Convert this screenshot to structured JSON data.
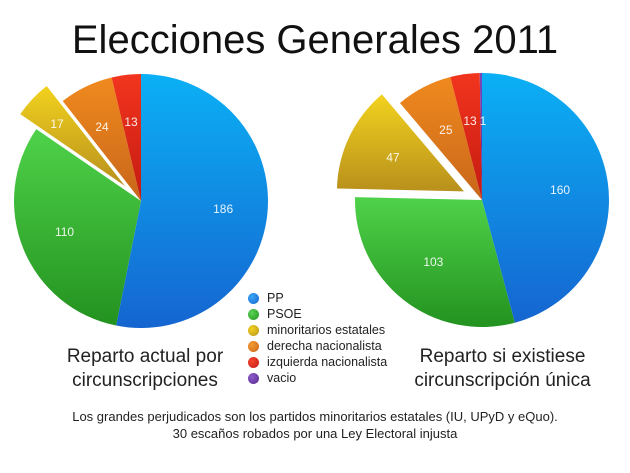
{
  "title": "Elecciones Generales 2011",
  "legend": [
    {
      "label": "PP",
      "color": "#1a86e8"
    },
    {
      "label": "PSOE",
      "color": "#3cb83a"
    },
    {
      "label": "minoritarios estatales",
      "color": "#d9b51c"
    },
    {
      "label": "derecha nacionalista",
      "color": "#e27a1a"
    },
    {
      "label": "izquierda nacionalista",
      "color": "#e0271c"
    },
    {
      "label": "vacio",
      "color": "#6a3aa0"
    }
  ],
  "captions": {
    "left": [
      "Reparto actual por",
      "circunscripciones"
    ],
    "right": [
      "Reparto si existiese",
      "circunscripción única"
    ]
  },
  "footer": [
    "Los grandes perjudicados son los partidos minoritarios estatales (IU, UPyD y eQuo).",
    "30 escaños robados por una Ley Electoral injusta"
  ],
  "chart_data": [
    {
      "type": "pie",
      "title": "Reparto actual por circunscripciones",
      "categories": [
        "PP",
        "PSOE",
        "minoritarios estatales",
        "derecha nacionalista",
        "izquierda nacionalista"
      ],
      "values": [
        186,
        110,
        17,
        24,
        13
      ],
      "labels": [
        "186",
        "110",
        "17",
        "24",
        "13"
      ],
      "exploded": [
        "minoritarios estatales"
      ]
    },
    {
      "type": "pie",
      "title": "Reparto si existiese circunscripción única",
      "categories": [
        "PP",
        "PSOE",
        "minoritarios estatales",
        "derecha nacionalista",
        "izquierda nacionalista",
        "vacio"
      ],
      "values": [
        160,
        103,
        47,
        25,
        13,
        1
      ],
      "labels": [
        "160",
        "103",
        "47",
        "25",
        "13",
        "1"
      ],
      "exploded": [
        "minoritarios estatales"
      ]
    }
  ]
}
